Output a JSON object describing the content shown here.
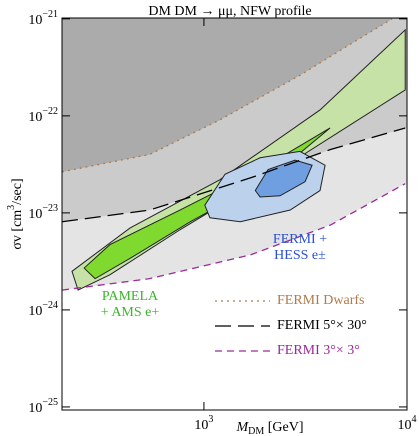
{
  "chart_data": {
    "type": "line",
    "title": "DM DM → μμ,  NFW profile",
    "x_label": "MDM  [GeV]",
    "y_label": "σv  [cm3/sec]",
    "xlog": true,
    "ylog": true,
    "xlim": [
      200,
      10000
    ],
    "ylim": [
      9.3e-26,
      1.02e-21
    ],
    "xticks": [
      {
        "value": 1000,
        "label": "103"
      },
      {
        "value": 10000,
        "label": "104"
      }
    ],
    "yticks": [
      {
        "value": 1e-21,
        "label": "10−21"
      },
      {
        "value": 1e-22,
        "label": "10−22"
      },
      {
        "value": 1e-23,
        "label": "10−23"
      },
      {
        "value": 1e-24,
        "label": "10−24"
      },
      {
        "value": 1e-25,
        "label": "10−25"
      }
    ],
    "series": [
      {
        "name": "FERMI 3°× 3°",
        "color": "#9a2a9a",
        "fill": "#e4e4e4",
        "style": "dash-short",
        "x": [
          200,
          540,
          1700,
          4200,
          9800
        ],
        "values": [
          1.6e-24,
          2.1e-24,
          3.7e-24,
          7.5e-24,
          2e-23
        ]
      },
      {
        "name": "FERMI 5°× 30°",
        "color": "#000000",
        "fill": "#cbcbcb",
        "style": "dash-long",
        "x": [
          200,
          540,
          1700,
          4200,
          9800
        ],
        "values": [
          8.1e-24,
          1.07e-23,
          2.3e-23,
          4.5e-23,
          7.5e-23
        ]
      },
      {
        "name": "FERMI Dwarfs",
        "color": "#b07a4a",
        "fill": "#ababab",
        "style": "dot",
        "x": [
          200,
          540,
          1200,
          3000,
          5200,
          8450
        ],
        "values": [
          2.65e-23,
          4e-23,
          9.1e-23,
          2.65e-22,
          5.4e-22,
          1e-21
        ]
      }
    ],
    "regions": [
      {
        "color": "#c6e2a6",
        "x": [
          224,
          433,
          1200,
          3730,
          9800,
          9800,
          2370,
          762,
          344,
          240
        ],
        "values": [
          2.5e-24,
          7e-24,
          2.2e-23,
          1.15e-22,
          7.7e-22,
          1.85e-22,
          2.8e-23,
          6.7e-24,
          2.3e-24,
          1.6e-24
        ]
      },
      {
        "color": "#7fd92e",
        "x": [
          257,
          344,
          762,
          1890,
          4180,
          2120,
          855,
          433,
          291
        ],
        "values": [
          2.7e-24,
          4.7e-24,
          1.07e-23,
          2.8e-23,
          7.5e-23,
          2.3e-23,
          8.1e-24,
          3.4e-24,
          2.1e-24
        ]
      },
      {
        "color": "#bcd1ec",
        "x": [
          1010,
          1270,
          1890,
          2970,
          3950,
          3730,
          2660,
          1510,
          1070
        ],
        "values": [
          1.2e-23,
          2.5e-23,
          3.7e-23,
          4.3e-23,
          3.1e-23,
          1.7e-23,
          1.07e-23,
          8.1e-24,
          8.9e-24
        ]
      },
      {
        "color": "#6f9fe0",
        "x": [
          1790,
          2070,
          2810,
          3410,
          3150,
          2370,
          1890
        ],
        "values": [
          1.7e-23,
          2.8e-23,
          3.5e-23,
          3.1e-23,
          2.1e-23,
          1.5e-23,
          1.46e-23
        ]
      }
    ],
    "annotations": [
      {
        "lines": [
          "FERMI +",
          "HESS e±"
        ],
        "color": "#2a4fd0"
      },
      {
        "lines": [
          "PAMELA",
          "+ AMS e+"
        ],
        "color": "#3bb52a"
      }
    ],
    "legend": "bottom-right"
  }
}
